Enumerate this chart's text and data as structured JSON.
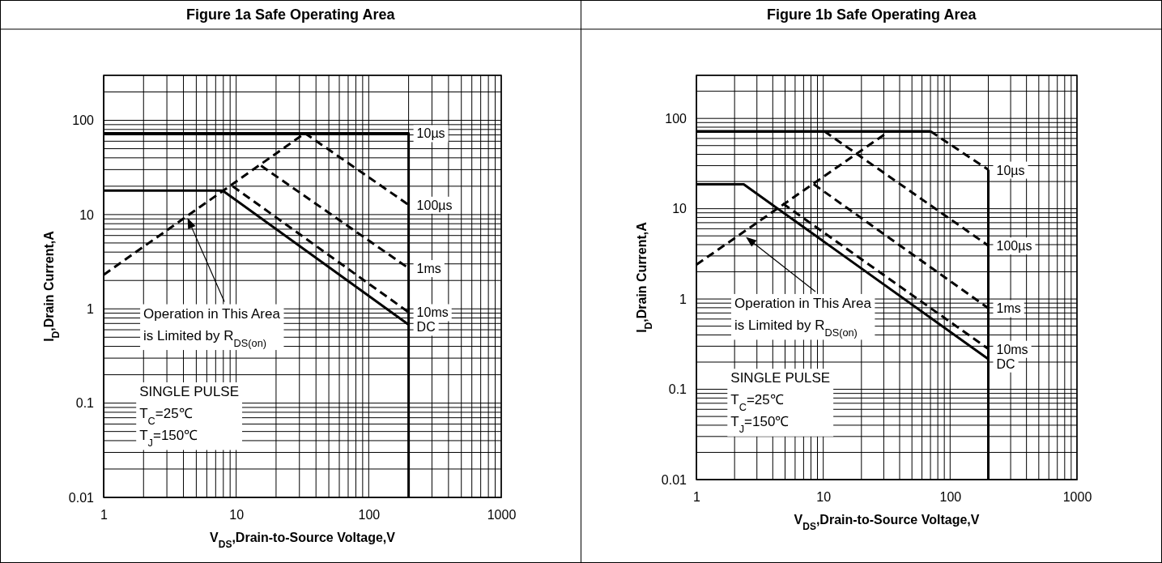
{
  "chart_data": [
    {
      "type": "line",
      "title": "Figure 1a Safe Operating Area",
      "xlabel": "V$_{DS}$,Drain-to-Source Voltage,V",
      "ylabel": "I$_{D}$,Drain Current,A",
      "log": "xy",
      "grid": true,
      "xlim": [
        1,
        1000
      ],
      "ylim": [
        0.01,
        300
      ],
      "xticks": [
        1,
        10,
        100,
        1000
      ],
      "yticks": [
        0.01,
        0.1,
        1,
        10,
        100
      ],
      "series": [
        {
          "color": "#000000",
          "line_style": "dashed",
          "x": [
            1,
            33
          ],
          "values": [
            2.3,
            73
          ]
        },
        {
          "name": "10µs",
          "color": "#000000",
          "line_style": "solid",
          "x": [
            1,
            200,
            200
          ],
          "values": [
            73,
            73,
            0.01
          ]
        },
        {
          "name": "100µs",
          "color": "#000000",
          "line_style": "dashed",
          "x": [
            33,
            200
          ],
          "values": [
            73,
            12.7
          ]
        },
        {
          "name": "1ms",
          "color": "#000000",
          "line_style": "dashed",
          "x": [
            15.4,
            200
          ],
          "values": [
            33,
            2.7
          ]
        },
        {
          "name": "10ms",
          "color": "#000000",
          "line_style": "dashed",
          "x": [
            9.4,
            200
          ],
          "values": [
            20,
            0.92
          ]
        },
        {
          "name": "DC",
          "color": "#000000",
          "line_style": "solid",
          "x": [
            1,
            7.9,
            200
          ],
          "values": [
            18,
            18,
            0.68
          ]
        }
      ],
      "annotations": [
        "Operation in This Area\nis Limited by R$_{DS(on)}$",
        "SINGLE PULSE\nT$_{C}$=25℃\nT$_{J}$=150℃"
      ]
    },
    {
      "type": "line",
      "title": "Figure 1b Safe Operating Area",
      "xlabel": "V$_{DS}$,Drain-to-Source Voltage,V",
      "ylabel": "I$_{D}$,Drain Current,A",
      "log": "xy",
      "grid": true,
      "xlim": [
        1,
        1000
      ],
      "ylim": [
        0.01,
        300
      ],
      "xticks": [
        1,
        10,
        100,
        1000
      ],
      "yticks": [
        0.01,
        0.1,
        1,
        10,
        100
      ],
      "series": [
        {
          "color": "#000000",
          "line_style": "dashed",
          "x": [
            1,
            33
          ],
          "values": [
            2.4,
            72
          ]
        },
        {
          "color": "#000000",
          "line_style": "solid",
          "x": [
            1,
            70
          ],
          "values": [
            72,
            72
          ]
        },
        {
          "name": "10µs",
          "color": "#000000",
          "line_style": "dashed",
          "x": [
            70,
            200
          ],
          "values": [
            72,
            27
          ]
        },
        {
          "color": "#000000",
          "line_style": "solid",
          "x": [
            200,
            200
          ],
          "values": [
            27,
            0.01
          ]
        },
        {
          "name": "100µs",
          "color": "#000000",
          "line_style": "dashed",
          "x": [
            10.2,
            200
          ],
          "values": [
            72,
            3.9
          ]
        },
        {
          "name": "1ms",
          "color": "#000000",
          "line_style": "dashed",
          "x": [
            8.4,
            200
          ],
          "values": [
            18.7,
            0.79
          ]
        },
        {
          "name": "10ms",
          "color": "#000000",
          "line_style": "dashed",
          "x": [
            4.8,
            200
          ],
          "values": [
            11.4,
            0.28
          ]
        },
        {
          "name": "DC",
          "color": "#000000",
          "line_style": "solid",
          "x": [
            1,
            2.36,
            200
          ],
          "values": [
            18.6,
            18.6,
            0.216
          ]
        }
      ],
      "annotations": [
        "Operation in This Area\nis Limited by R$_{DS(on)}$",
        "SINGLE PULSE\nT$_{C}$=25℃\nT$_{J}$=150℃"
      ]
    }
  ]
}
